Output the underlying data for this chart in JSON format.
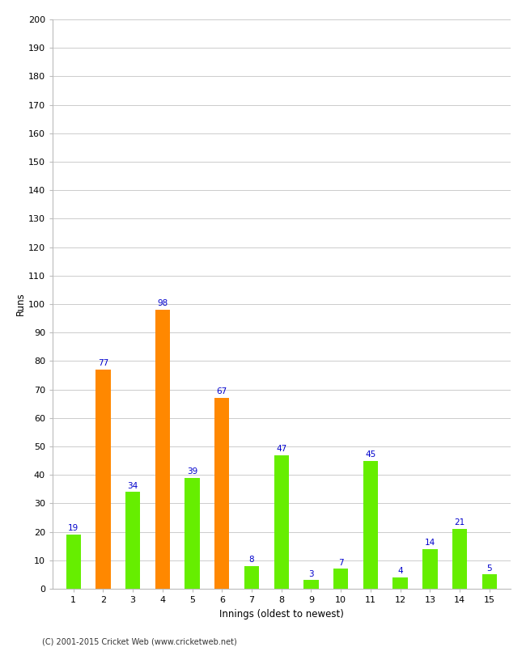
{
  "innings": [
    1,
    2,
    3,
    4,
    5,
    6,
    7,
    8,
    9,
    10,
    11,
    12,
    13,
    14,
    15
  ],
  "runs": [
    19,
    77,
    34,
    98,
    39,
    67,
    8,
    47,
    3,
    7,
    45,
    4,
    14,
    21,
    5
  ],
  "colors": [
    "#66ee00",
    "#ff8800",
    "#66ee00",
    "#ff8800",
    "#66ee00",
    "#ff8800",
    "#66ee00",
    "#66ee00",
    "#66ee00",
    "#66ee00",
    "#66ee00",
    "#66ee00",
    "#66ee00",
    "#66ee00",
    "#66ee00"
  ],
  "title": "",
  "xlabel": "Innings (oldest to newest)",
  "ylabel": "Runs",
  "ylim": [
    0,
    200
  ],
  "yticks": [
    0,
    10,
    20,
    30,
    40,
    50,
    60,
    70,
    80,
    90,
    100,
    110,
    120,
    130,
    140,
    150,
    160,
    170,
    180,
    190,
    200
  ],
  "label_color": "#0000cc",
  "footnote": "(C) 2001-2015 Cricket Web (www.cricketweb.net)",
  "background_color": "#ffffff",
  "bar_width": 0.5
}
